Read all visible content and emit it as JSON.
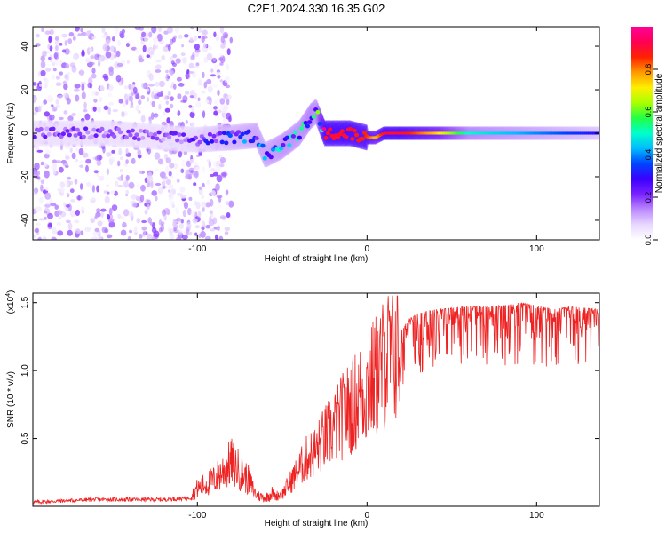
{
  "title": "C2E1.2024.330.16.35.G02",
  "colors": {
    "snr_line": "#ee2222",
    "colormap": [
      "#ffffff",
      "#e8d8ff",
      "#bb88ff",
      "#7a22ff",
      "#3a00ff",
      "#0044ff",
      "#00bbff",
      "#00ffcc",
      "#22ff44",
      "#aaff00",
      "#ffee00",
      "#ff9900",
      "#ff2200",
      "#ff0055",
      "#ff0099"
    ]
  },
  "chart_data": [
    {
      "type": "heatmap",
      "title": "C2E1.2024.330.16.35.G02",
      "xlabel": "Height of straight line (km)",
      "ylabel": "Frequency (Hz)",
      "xlim": [
        -197,
        137
      ],
      "ylim": [
        -49,
        49
      ],
      "xticks": [
        "-100",
        "0",
        "100"
      ],
      "xtick_values": [
        -100,
        0,
        100
      ],
      "yticks": [
        "-40",
        "-20",
        "0",
        "20",
        "40"
      ],
      "ytick_values": [
        -40,
        -20,
        0,
        20,
        40
      ],
      "colorbar": {
        "label": "Normalized spectral amplitude",
        "range": [
          0,
          1
        ],
        "ticks": [
          "0.0",
          "0.2",
          "0.4",
          "0.6",
          "0.8"
        ],
        "tick_values": [
          0,
          0.2,
          0.4,
          0.6,
          0.8
        ]
      },
      "center_frequency_track": {
        "height_km": [
          -197,
          -150,
          -120,
          -100,
          -80,
          -65,
          -60,
          -50,
          -40,
          -33,
          -30,
          -25,
          -10,
          0,
          5,
          10,
          20,
          40,
          60,
          80,
          100,
          120,
          137
        ],
        "frequency_hz": [
          0,
          0,
          -2,
          -3,
          -2,
          -1,
          -10,
          -6,
          0,
          8,
          10,
          0,
          0,
          -2,
          -2,
          0,
          0,
          0,
          0,
          0,
          0,
          0,
          0
        ],
        "amplitude": [
          0.2,
          0.2,
          0.2,
          0.25,
          0.35,
          0.4,
          0.4,
          0.45,
          0.45,
          0.5,
          0.45,
          0.9,
          0.9,
          0.85,
          0.75,
          0.9,
          0.9,
          0.75,
          0.5,
          0.45,
          0.4,
          0.35,
          0.3
        ]
      }
    },
    {
      "type": "line",
      "xlabel": "Height of straight line (km)",
      "ylabel": "SNR (10 * v/v)",
      "y_multiplier": "(x10",
      "y_multiplier_exp": "4",
      "y_multiplier_close": ")",
      "xlim": [
        -197,
        137
      ],
      "ylim": [
        0,
        1.57
      ],
      "xticks": [
        "-100",
        "0",
        "100"
      ],
      "xtick_values": [
        -100,
        0,
        100
      ],
      "yticks": [
        "0.5",
        "1.0",
        "1.5"
      ],
      "ytick_values": [
        0.5,
        1.0,
        1.5
      ],
      "series": [
        {
          "height_km": [
            -197,
            -180,
            -160,
            -140,
            -120,
            -105,
            -100,
            -90,
            -85,
            -80,
            -75,
            -70,
            -65,
            -60,
            -55,
            -50,
            -40,
            -35,
            -30,
            -25,
            -20,
            -15,
            -10,
            -5,
            0,
            5,
            10,
            15,
            20,
            25,
            30,
            40,
            50,
            60,
            70,
            80,
            90,
            100,
            110,
            120,
            130,
            137
          ],
          "snr_x1e4": [
            0.03,
            0.04,
            0.05,
            0.05,
            0.05,
            0.06,
            0.1,
            0.15,
            0.2,
            0.25,
            0.2,
            0.15,
            0.06,
            0.05,
            0.08,
            0.1,
            0.3,
            0.4,
            0.45,
            0.55,
            0.62,
            0.72,
            0.8,
            0.88,
            0.95,
            1.05,
            1.15,
            1.25,
            1.3,
            1.38,
            1.42,
            1.45,
            1.46,
            1.48,
            1.47,
            1.48,
            1.5,
            1.48,
            1.45,
            1.47,
            1.46,
            1.45
          ]
        }
      ]
    }
  ]
}
